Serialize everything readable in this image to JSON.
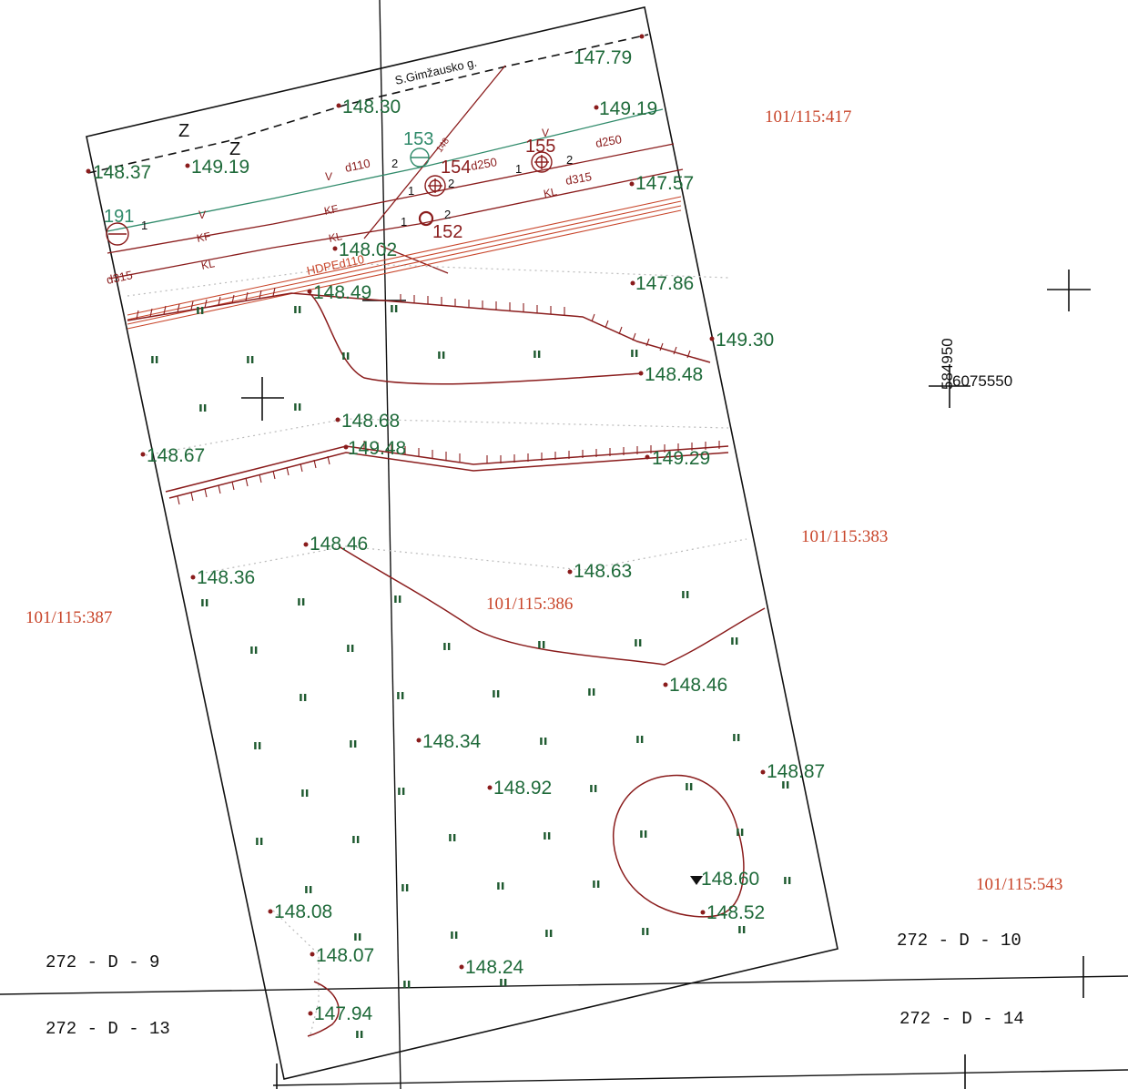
{
  "street_name": "S.Gimžausko g.",
  "fence_mark": "Z",
  "colors": {
    "elevation_text": "#1f6a3a",
    "parcel_text": "#c8452a",
    "utility_line": "#8a1c1c",
    "water_line": "#2f8a6a",
    "frame": "#111111"
  },
  "parcels": [
    {
      "id": "p417",
      "label": "101/115:417"
    },
    {
      "id": "p383",
      "label": "101/115:383"
    },
    {
      "id": "p387",
      "label": "101/115:387"
    },
    {
      "id": "p386",
      "label": "101/115:386"
    },
    {
      "id": "p543",
      "label": "101/115:543"
    }
  ],
  "sheets": [
    {
      "id": "s9",
      "label": "272 - D - 9"
    },
    {
      "id": "s10",
      "label": "272 - D - 10"
    },
    {
      "id": "s13",
      "label": "272 - D - 13"
    },
    {
      "id": "s14",
      "label": "272 - D - 14"
    }
  ],
  "coordinates": {
    "northing": "584950",
    "easting": "6075550"
  },
  "wells": [
    {
      "id": "w153",
      "number": "153"
    },
    {
      "id": "w154",
      "number": "154"
    },
    {
      "id": "w155",
      "number": "155"
    },
    {
      "id": "w152",
      "number": "152"
    },
    {
      "id": "w191",
      "number": "191"
    }
  ],
  "pipe_labels": {
    "d110": "d110",
    "d250": "d250",
    "d315": "d315",
    "hdpe": "HDPEd110",
    "v": "V",
    "kf": "KF",
    "kl": "KL",
    "one": "1",
    "two": "2",
    "d148": "148"
  },
  "elevations": [
    "147.79",
    "148.30",
    "149.19",
    "148.37",
    "149.19",
    "147.57",
    "148.02",
    "147.86",
    "148.49",
    "149.30",
    "148.48",
    "148.68",
    "148.67",
    "149.48",
    "149.29",
    "148.46",
    "148.36",
    "148.63",
    "148.46",
    "148.34",
    "148.92",
    "148.87",
    "148.60",
    "148.52",
    "148.08",
    "148.07",
    "148.24",
    "147.94"
  ]
}
